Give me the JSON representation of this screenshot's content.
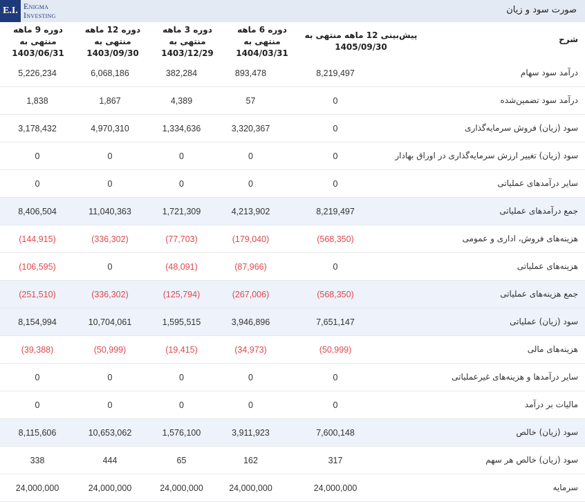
{
  "header": {
    "logo_mark": "E.I.",
    "logo_line1": "Enigma",
    "logo_line2": "Investing",
    "title": "صورت سود و زیان"
  },
  "watermark": "ENIGMA INVESTING",
  "table": {
    "label_header": "شرح",
    "columns": [
      {
        "title": "پیش‌بینی 12 ماهه منتهی به",
        "date": "1405/09/30"
      },
      {
        "title": "دوره 6 ماهه منتهی به",
        "date": "1404/03/31"
      },
      {
        "title": "دوره 3 ماهه منتهی به",
        "date": "1403/12/29"
      },
      {
        "title": "دوره 12 ماهه منتهی به",
        "date": "1403/09/30"
      },
      {
        "title": "دوره 9 ماهه منتهی به",
        "date": "1403/06/31"
      }
    ],
    "rows": [
      {
        "label": "درآمد سود سهام",
        "highlight": false,
        "values": [
          "8,219,497",
          "893,478",
          "382,284",
          "6,068,186",
          "5,226,234"
        ]
      },
      {
        "label": "درآمد سود تضمین‌شده",
        "highlight": false,
        "values": [
          "0",
          "57",
          "4,389",
          "1,867",
          "1,838"
        ]
      },
      {
        "label": "سود (زیان) فروش سرمایه‌گذاری",
        "highlight": false,
        "values": [
          "0",
          "3,320,367",
          "1,334,636",
          "4,970,310",
          "3,178,432"
        ]
      },
      {
        "label": "سود (زیان) تغییر ارزش سرمایه‌گذاری در اوراق بهادار",
        "highlight": false,
        "values": [
          "0",
          "0",
          "0",
          "0",
          "0"
        ]
      },
      {
        "label": "سایر درآمدهای عملیاتی",
        "highlight": false,
        "values": [
          "0",
          "0",
          "0",
          "0",
          "0"
        ]
      },
      {
        "label": "جمع درآمدهای عملیاتی",
        "highlight": true,
        "values": [
          "8,219,497",
          "4,213,902",
          "1,721,309",
          "11,040,363",
          "8,406,504"
        ]
      },
      {
        "label": "هزینه‌های فروش، اداری و عمومی",
        "highlight": false,
        "values": [
          "(568,350)",
          "(179,040)",
          "(77,703)",
          "(336,302)",
          "(144,915)"
        ]
      },
      {
        "label": "هزینه‌های عملیاتی",
        "highlight": false,
        "values": [
          "0",
          "(87,966)",
          "(48,091)",
          "0",
          "(106,595)"
        ]
      },
      {
        "label": "جمع هزینه‌های عملیاتی",
        "highlight": true,
        "values": [
          "(568,350)",
          "(267,006)",
          "(125,794)",
          "(336,302)",
          "(251,510)"
        ]
      },
      {
        "label": "سود (زیان) عملیاتی",
        "highlight": true,
        "values": [
          "7,651,147",
          "3,946,896",
          "1,595,515",
          "10,704,061",
          "8,154,994"
        ]
      },
      {
        "label": "هزینه‌های مالی",
        "highlight": false,
        "values": [
          "(50,999)",
          "(34,973)",
          "(19,415)",
          "(50,999)",
          "(39,388)"
        ]
      },
      {
        "label": "سایر درآمدها و هزینه‌های غیرعملیاتی",
        "highlight": false,
        "values": [
          "0",
          "0",
          "0",
          "0",
          "0"
        ]
      },
      {
        "label": "مالیات بر درآمد",
        "highlight": false,
        "values": [
          "0",
          "0",
          "0",
          "0",
          "0"
        ]
      },
      {
        "label": "سود (زیان) خالص",
        "highlight": true,
        "values": [
          "7,600,148",
          "3,911,923",
          "1,576,100",
          "10,653,062",
          "8,115,606"
        ]
      },
      {
        "label": "سود (زیان) خالص هر سهم",
        "highlight": false,
        "values": [
          "317",
          "162",
          "65",
          "444",
          "338"
        ]
      },
      {
        "label": "سرمایه",
        "highlight": false,
        "values": [
          "24,000,000",
          "24,000,000",
          "24,000,000",
          "24,000,000",
          "24,000,000"
        ]
      }
    ]
  },
  "colors": {
    "negative": "#e0474c",
    "highlight_row": "#edf2fb",
    "topbar": "#e4eaf4",
    "brand": "#1f3a7a"
  }
}
